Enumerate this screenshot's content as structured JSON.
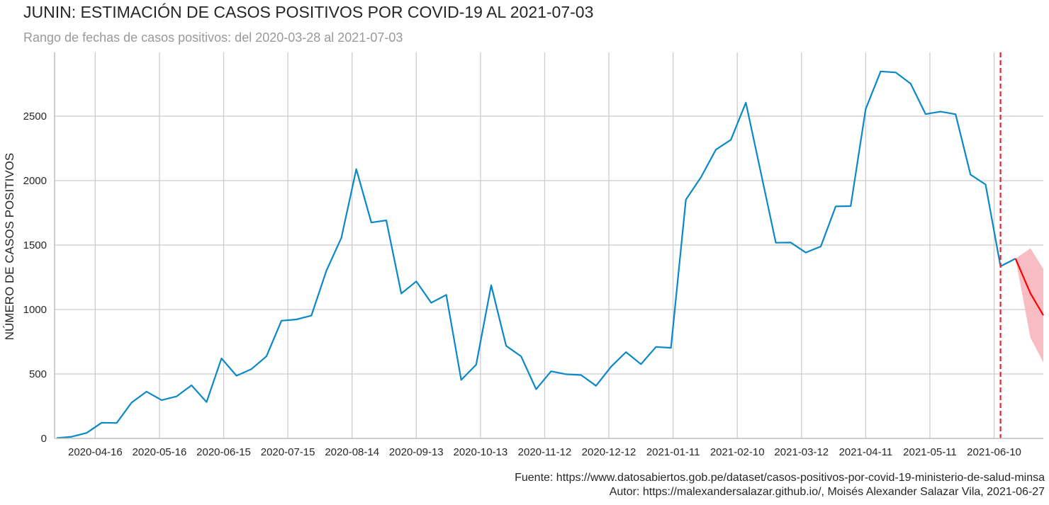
{
  "header": {
    "title": "JUNIN: ESTIMACIÓN DE CASOS POSITIVOS POR COVID-19 AL 2021-07-03",
    "subtitle": "Rango de fechas de casos positivos: del 2020-03-28 al 2021-07-03"
  },
  "footer": {
    "source": "Fuente: https://www.datosabiertos.gob.pe/dataset/casos-positivos-por-covid-19-ministerio-de-salud-minsa",
    "author": "Autor: https://malexandersalazar.github.io/, Moisés Alexander Salazar Vila, 2021-06-27"
  },
  "colors": {
    "observed": "#0a88c8",
    "forecast": "#ff0000",
    "band": "#f7b9c0",
    "cutoff": "#e3242b",
    "grid": "#cccccc",
    "axis": "#bdbdbd"
  },
  "chart_data": {
    "type": "line",
    "title": "JUNIN: ESTIMACIÓN DE CASOS POSITIVOS POR COVID-19 AL 2021-07-03",
    "subtitle": "Rango de fechas de casos positivos: del 2020-03-28 al 2021-07-03",
    "xlabel": "",
    "ylabel": "NÚMERO DE CASOS POSITIVOS",
    "x_range": [
      "2020-03-28",
      "2021-07-03"
    ],
    "ylim": [
      0,
      3000
    ],
    "yticks": [
      0,
      500,
      1000,
      1500,
      2000,
      2500
    ],
    "xticks": [
      "2020-04-16",
      "2020-05-16",
      "2020-06-15",
      "2020-07-15",
      "2020-08-14",
      "2020-09-13",
      "2020-10-13",
      "2020-11-12",
      "2020-12-12",
      "2021-01-11",
      "2021-02-10",
      "2021-03-12",
      "2021-04-11",
      "2021-05-11",
      "2021-06-10"
    ],
    "grid": true,
    "cutoff_date": "2021-06-13",
    "series": [
      {
        "kind": "observed",
        "x": [
          "2020-03-29",
          "2020-04-05",
          "2020-04-12",
          "2020-04-19",
          "2020-04-26",
          "2020-05-03",
          "2020-05-10",
          "2020-05-17",
          "2020-05-24",
          "2020-05-31",
          "2020-06-07",
          "2020-06-14",
          "2020-06-21",
          "2020-06-28",
          "2020-07-05",
          "2020-07-12",
          "2020-07-19",
          "2020-07-26",
          "2020-08-02",
          "2020-08-09",
          "2020-08-16",
          "2020-08-23",
          "2020-08-30",
          "2020-09-06",
          "2020-09-13",
          "2020-09-20",
          "2020-09-27",
          "2020-10-04",
          "2020-10-11",
          "2020-10-18",
          "2020-10-25",
          "2020-11-01",
          "2020-11-08",
          "2020-11-15",
          "2020-11-22",
          "2020-11-29",
          "2020-12-06",
          "2020-12-13",
          "2020-12-20",
          "2020-12-27",
          "2021-01-03",
          "2021-01-10",
          "2021-01-17",
          "2021-01-24",
          "2021-01-31",
          "2021-02-07",
          "2021-02-14",
          "2021-02-21",
          "2021-02-28",
          "2021-03-07",
          "2021-03-14",
          "2021-03-21",
          "2021-03-28",
          "2021-04-04",
          "2021-04-11",
          "2021-04-18",
          "2021-04-25",
          "2021-05-02",
          "2021-05-09",
          "2021-05-16",
          "2021-05-23",
          "2021-05-30",
          "2021-06-06",
          "2021-06-13",
          "2021-06-20"
        ],
        "y": [
          3,
          13,
          43,
          122,
          120,
          278,
          363,
          297,
          326,
          412,
          282,
          621,
          486,
          538,
          637,
          913,
          923,
          953,
          1301,
          1556,
          2089,
          1675,
          1692,
          1124,
          1218,
          1052,
          1114,
          454,
          572,
          1188,
          718,
          637,
          382,
          521,
          498,
          492,
          408,
          556,
          670,
          576,
          710,
          703,
          1852,
          2025,
          2240,
          2317,
          2605,
          2064,
          1518,
          1520,
          1442,
          1489,
          1800,
          1802,
          2556,
          2847,
          2839,
          2752,
          2516,
          2535,
          2515,
          2046,
          1970,
          1335,
          1395
        ]
      },
      {
        "kind": "forecast",
        "x": [
          "2021-06-20",
          "2021-06-27",
          "2021-07-03"
        ],
        "y": [
          1395,
          1125,
          955
        ]
      },
      {
        "kind": "interval",
        "x": [
          "2021-06-20",
          "2021-06-27",
          "2021-07-03"
        ],
        "lower": [
          1395,
          780,
          590
        ],
        "upper": [
          1395,
          1475,
          1315
        ]
      }
    ]
  }
}
